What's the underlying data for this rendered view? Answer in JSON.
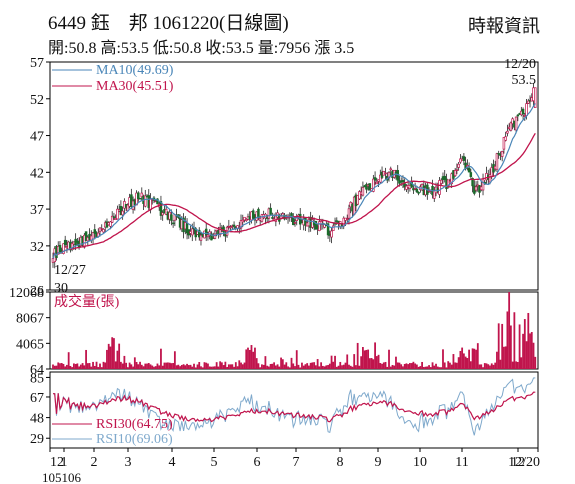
{
  "header": {
    "title": "6449 鈺　邦 1061220(日線圖)",
    "source": "時報資訊",
    "summary": "開:50.8 高:53.5 低:50.8 收:53.5 量:7956 漲 3.5"
  },
  "chart_data": {
    "type": "candlestick",
    "x_tick_labels": [
      "12",
      "1",
      "2",
      "3",
      "4",
      "5",
      "6",
      "7",
      "8",
      "9",
      "10",
      "11",
      "12",
      "12/20"
    ],
    "x_sub_label": "105106",
    "price_panel": {
      "yticks": [
        "57",
        "52",
        "47",
        "42",
        "37",
        "32",
        "26"
      ],
      "ylim": [
        26,
        57
      ],
      "legend": [
        {
          "name": "MA10(49.69)",
          "color": "#4a86b8"
        },
        {
          "name": "MA30(45.51)",
          "color": "#c0144c"
        }
      ],
      "annotations": {
        "high_date": "12/20",
        "high_value": "53.5",
        "low_date": "12/27",
        "low_value": "30"
      },
      "last_close": 53.5,
      "low": 30,
      "high": 53.5
    },
    "volume_panel": {
      "label": "成交量(張)",
      "yticks": [
        "12068",
        "8067",
        "4065",
        "64"
      ],
      "ylim": [
        64,
        12068
      ],
      "color": "#c0144c"
    },
    "rsi_panel": {
      "yticks": [
        "85",
        "67",
        "48",
        "29"
      ],
      "legend": [
        {
          "name": "RSI30(64.75)",
          "color": "#c0144c"
        },
        {
          "name": "RSI10(69.06)",
          "color": "#7fa9cc"
        }
      ]
    },
    "series_key_points": {
      "close": [
        [
          0,
          31
        ],
        [
          20,
          33
        ],
        [
          32,
          35
        ],
        [
          42,
          37.5
        ],
        [
          50,
          38.8
        ],
        [
          58,
          37.5
        ],
        [
          68,
          36
        ],
        [
          78,
          34
        ],
        [
          90,
          33.5
        ],
        [
          100,
          34
        ],
        [
          110,
          35.5
        ],
        [
          120,
          36.5
        ],
        [
          130,
          36
        ],
        [
          140,
          35.5
        ],
        [
          150,
          35
        ],
        [
          160,
          34
        ],
        [
          168,
          36
        ],
        [
          176,
          39
        ],
        [
          186,
          41
        ],
        [
          195,
          42
        ],
        [
          206,
          40
        ],
        [
          216,
          39.5
        ],
        [
          226,
          40.5
        ],
        [
          236,
          44
        ],
        [
          242,
          39
        ],
        [
          252,
          42
        ],
        [
          262,
          48
        ],
        [
          270,
          50
        ],
        [
          277,
          53.5
        ]
      ]
    },
    "axis_color": "#000",
    "grid": false
  }
}
